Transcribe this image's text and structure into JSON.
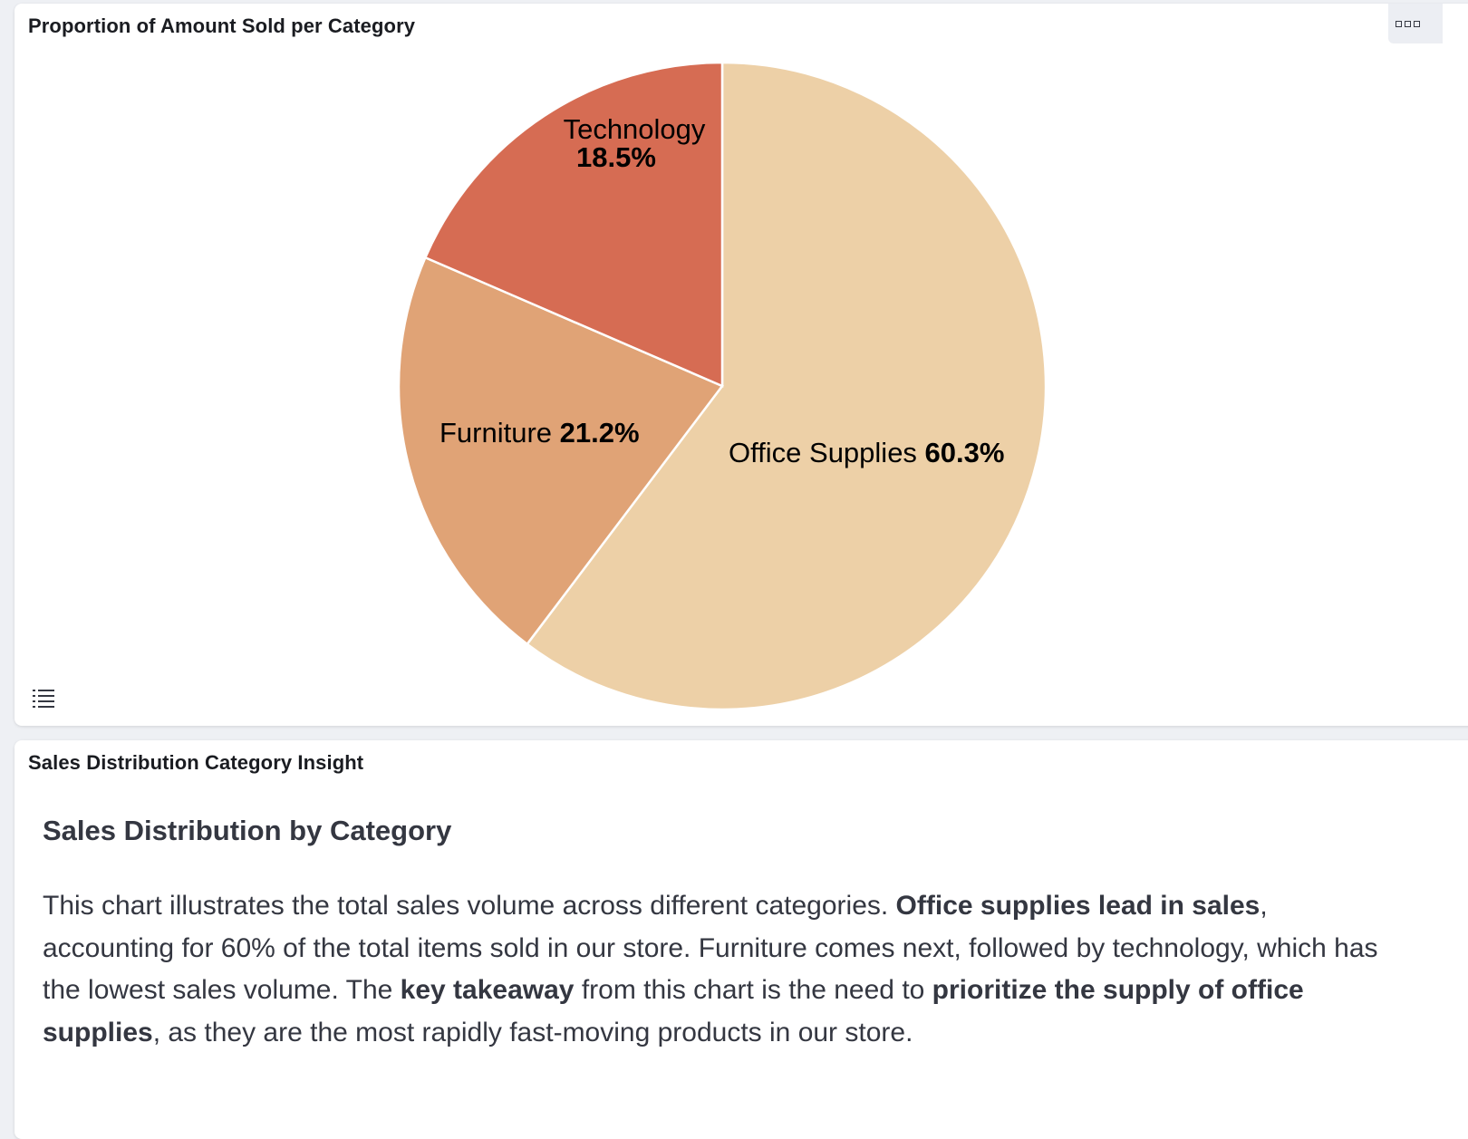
{
  "chart_panel": {
    "title": "Proportion of Amount Sold per Category",
    "menu_icon": "panel-options-icon",
    "legend_toggle_icon": "legend-list-icon"
  },
  "chart_data": {
    "type": "pie",
    "title": "Proportion of Amount Sold per Category",
    "categories": [
      "Office Supplies",
      "Furniture",
      "Technology"
    ],
    "values": [
      60.3,
      21.2,
      18.5
    ],
    "labels": [
      "60.3%",
      "21.2%",
      "18.5%"
    ],
    "colors": [
      "#edd0a7",
      "#e0a376",
      "#d66c53"
    ],
    "start_angle": "12 o'clock",
    "direction": "clockwise",
    "legend": "hidden"
  },
  "insight_panel": {
    "title": "Sales Distribution Category Insight",
    "heading": "Sales Distribution by Category",
    "paragraph": [
      {
        "text": "This chart illustrates the total sales volume across different categories. ",
        "bold": false
      },
      {
        "text": "Office supplies lead in sales",
        "bold": true
      },
      {
        "text": ", accounting for 60% of the total items sold in our store. Furniture comes next, followed by technology, which has the lowest sales volume. The ",
        "bold": false
      },
      {
        "text": "key takeaway",
        "bold": true
      },
      {
        "text": " from this chart is the need to ",
        "bold": false
      },
      {
        "text": "prioritize the supply of office supplies",
        "bold": true
      },
      {
        "text": ", as they are the most rapidly fast-moving products in our store.",
        "bold": false
      }
    ]
  }
}
